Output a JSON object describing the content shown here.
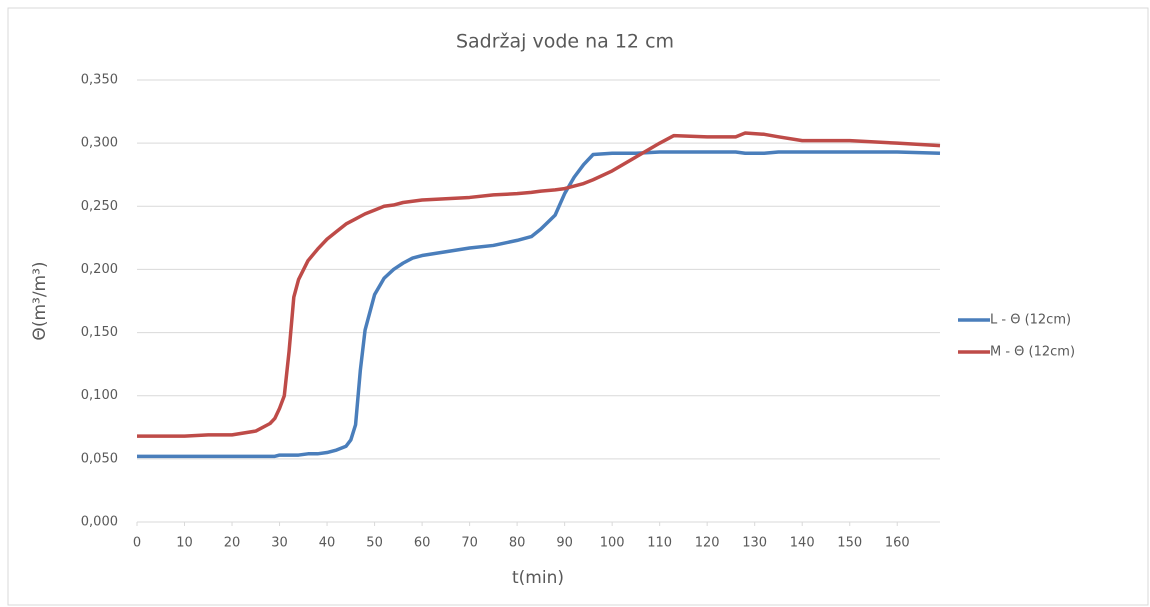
{
  "chart_data": {
    "type": "line",
    "title": "Sadržaj vode na 12 cm",
    "x_label": "t(min)",
    "y_label": "Θ(m³/m³)",
    "x": [
      0,
      5,
      10,
      15,
      20,
      25,
      28,
      29,
      30,
      31,
      32,
      33,
      34,
      36,
      38,
      40,
      42,
      44,
      45,
      46,
      47,
      48,
      50,
      52,
      54,
      56,
      58,
      60,
      65,
      70,
      75,
      80,
      83,
      85,
      88,
      90,
      92,
      94,
      96,
      100,
      105,
      110,
      113,
      120,
      126,
      128,
      132,
      135,
      140,
      150,
      160,
      169
    ],
    "series": [
      {
        "name": "L - Θ (12cm)",
        "color": "#4a7ebb",
        "values": [
          0.052,
          0.052,
          0.052,
          0.052,
          0.052,
          0.052,
          0.052,
          0.052,
          0.053,
          0.053,
          0.053,
          0.053,
          0.053,
          0.054,
          0.054,
          0.055,
          0.057,
          0.06,
          0.065,
          0.077,
          0.12,
          0.152,
          0.18,
          0.193,
          0.2,
          0.205,
          0.209,
          0.211,
          0.214,
          0.217,
          0.219,
          0.223,
          0.226,
          0.232,
          0.243,
          0.26,
          0.273,
          0.283,
          0.291,
          0.292,
          0.292,
          0.293,
          0.293,
          0.293,
          0.293,
          0.292,
          0.292,
          0.293,
          0.293,
          0.293,
          0.293,
          0.292
        ]
      },
      {
        "name": "M - Θ (12cm)",
        "color": "#be4b48",
        "values": [
          0.068,
          0.068,
          0.068,
          0.069,
          0.069,
          0.072,
          0.078,
          0.082,
          0.09,
          0.1,
          0.135,
          0.178,
          0.192,
          0.207,
          0.216,
          0.224,
          0.23,
          0.236,
          0.238,
          0.24,
          0.242,
          0.244,
          0.247,
          0.25,
          0.251,
          0.253,
          0.254,
          0.255,
          0.256,
          0.257,
          0.259,
          0.26,
          0.261,
          0.262,
          0.263,
          0.264,
          0.266,
          0.268,
          0.271,
          0.278,
          0.289,
          0.3,
          0.306,
          0.305,
          0.305,
          0.308,
          0.307,
          0.305,
          0.302,
          0.302,
          0.3,
          0.298
        ]
      }
    ],
    "xlim": [
      0,
      169
    ],
    "xticks": [
      0,
      10,
      20,
      30,
      40,
      50,
      60,
      70,
      80,
      90,
      100,
      110,
      120,
      130,
      140,
      150,
      160
    ],
    "ylim": [
      0,
      0.35
    ],
    "yticks": [
      {
        "value": 0,
        "label": "0,000"
      },
      {
        "value": 0.05,
        "label": "0,050"
      },
      {
        "value": 0.1,
        "label": "0,100"
      },
      {
        "value": 0.15,
        "label": "0,150"
      },
      {
        "value": 0.2,
        "label": "0,200"
      },
      {
        "value": 0.25,
        "label": "0,250"
      },
      {
        "value": 0.3,
        "label": "0,300"
      },
      {
        "value": 0.35,
        "label": "0,350"
      }
    ],
    "grid": true,
    "legend": "right"
  }
}
